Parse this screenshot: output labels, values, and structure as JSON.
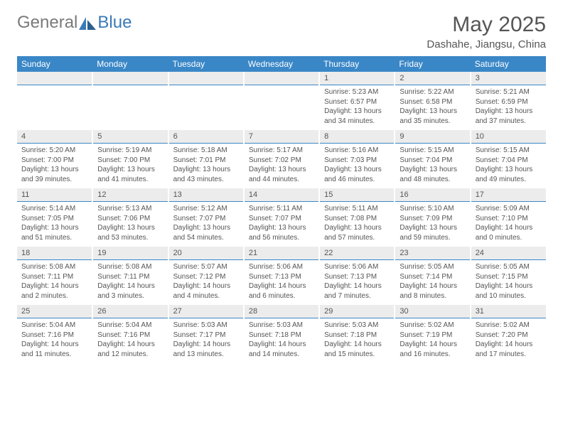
{
  "logo": {
    "part1": "General",
    "part2": "Blue"
  },
  "title": "May 2025",
  "location": "Dashahe, Jiangsu, China",
  "colors": {
    "header_blue": "#3a87c7",
    "date_bg": "#ececec",
    "text": "#555555",
    "logo_grey": "#7a7a7a",
    "logo_blue": "#3a7ab8"
  },
  "days_of_week": [
    "Sunday",
    "Monday",
    "Tuesday",
    "Wednesday",
    "Thursday",
    "Friday",
    "Saturday"
  ],
  "weeks": [
    [
      null,
      null,
      null,
      null,
      {
        "n": "1",
        "sr": "5:23 AM",
        "ss": "6:57 PM",
        "dl": "13 hours and 34 minutes."
      },
      {
        "n": "2",
        "sr": "5:22 AM",
        "ss": "6:58 PM",
        "dl": "13 hours and 35 minutes."
      },
      {
        "n": "3",
        "sr": "5:21 AM",
        "ss": "6:59 PM",
        "dl": "13 hours and 37 minutes."
      }
    ],
    [
      {
        "n": "4",
        "sr": "5:20 AM",
        "ss": "7:00 PM",
        "dl": "13 hours and 39 minutes."
      },
      {
        "n": "5",
        "sr": "5:19 AM",
        "ss": "7:00 PM",
        "dl": "13 hours and 41 minutes."
      },
      {
        "n": "6",
        "sr": "5:18 AM",
        "ss": "7:01 PM",
        "dl": "13 hours and 43 minutes."
      },
      {
        "n": "7",
        "sr": "5:17 AM",
        "ss": "7:02 PM",
        "dl": "13 hours and 44 minutes."
      },
      {
        "n": "8",
        "sr": "5:16 AM",
        "ss": "7:03 PM",
        "dl": "13 hours and 46 minutes."
      },
      {
        "n": "9",
        "sr": "5:15 AM",
        "ss": "7:04 PM",
        "dl": "13 hours and 48 minutes."
      },
      {
        "n": "10",
        "sr": "5:15 AM",
        "ss": "7:04 PM",
        "dl": "13 hours and 49 minutes."
      }
    ],
    [
      {
        "n": "11",
        "sr": "5:14 AM",
        "ss": "7:05 PM",
        "dl": "13 hours and 51 minutes."
      },
      {
        "n": "12",
        "sr": "5:13 AM",
        "ss": "7:06 PM",
        "dl": "13 hours and 53 minutes."
      },
      {
        "n": "13",
        "sr": "5:12 AM",
        "ss": "7:07 PM",
        "dl": "13 hours and 54 minutes."
      },
      {
        "n": "14",
        "sr": "5:11 AM",
        "ss": "7:07 PM",
        "dl": "13 hours and 56 minutes."
      },
      {
        "n": "15",
        "sr": "5:11 AM",
        "ss": "7:08 PM",
        "dl": "13 hours and 57 minutes."
      },
      {
        "n": "16",
        "sr": "5:10 AM",
        "ss": "7:09 PM",
        "dl": "13 hours and 59 minutes."
      },
      {
        "n": "17",
        "sr": "5:09 AM",
        "ss": "7:10 PM",
        "dl": "14 hours and 0 minutes."
      }
    ],
    [
      {
        "n": "18",
        "sr": "5:08 AM",
        "ss": "7:11 PM",
        "dl": "14 hours and 2 minutes."
      },
      {
        "n": "19",
        "sr": "5:08 AM",
        "ss": "7:11 PM",
        "dl": "14 hours and 3 minutes."
      },
      {
        "n": "20",
        "sr": "5:07 AM",
        "ss": "7:12 PM",
        "dl": "14 hours and 4 minutes."
      },
      {
        "n": "21",
        "sr": "5:06 AM",
        "ss": "7:13 PM",
        "dl": "14 hours and 6 minutes."
      },
      {
        "n": "22",
        "sr": "5:06 AM",
        "ss": "7:13 PM",
        "dl": "14 hours and 7 minutes."
      },
      {
        "n": "23",
        "sr": "5:05 AM",
        "ss": "7:14 PM",
        "dl": "14 hours and 8 minutes."
      },
      {
        "n": "24",
        "sr": "5:05 AM",
        "ss": "7:15 PM",
        "dl": "14 hours and 10 minutes."
      }
    ],
    [
      {
        "n": "25",
        "sr": "5:04 AM",
        "ss": "7:16 PM",
        "dl": "14 hours and 11 minutes."
      },
      {
        "n": "26",
        "sr": "5:04 AM",
        "ss": "7:16 PM",
        "dl": "14 hours and 12 minutes."
      },
      {
        "n": "27",
        "sr": "5:03 AM",
        "ss": "7:17 PM",
        "dl": "14 hours and 13 minutes."
      },
      {
        "n": "28",
        "sr": "5:03 AM",
        "ss": "7:18 PM",
        "dl": "14 hours and 14 minutes."
      },
      {
        "n": "29",
        "sr": "5:03 AM",
        "ss": "7:18 PM",
        "dl": "14 hours and 15 minutes."
      },
      {
        "n": "30",
        "sr": "5:02 AM",
        "ss": "7:19 PM",
        "dl": "14 hours and 16 minutes."
      },
      {
        "n": "31",
        "sr": "5:02 AM",
        "ss": "7:20 PM",
        "dl": "14 hours and 17 minutes."
      }
    ]
  ],
  "labels": {
    "sunrise": "Sunrise: ",
    "sunset": "Sunset: ",
    "daylight": "Daylight: "
  }
}
